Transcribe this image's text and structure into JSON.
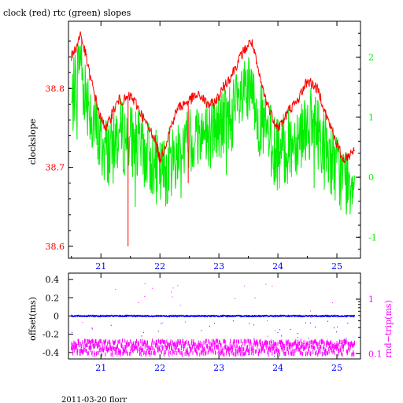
{
  "title": "clock (red) rtc (green) slopes",
  "footer": "2011-03-20 florr",
  "colors": {
    "clock": "#ff0000",
    "rtc": "#00ee00",
    "offset": "#0000ff",
    "rndtrip": "#ff00ff",
    "frame": "#000000"
  },
  "chart_data": [
    {
      "type": "line",
      "title": "clock (red) rtc (green) slopes",
      "x_ticks": [
        21,
        22,
        23,
        24,
        25
      ],
      "xlim": [
        20.45,
        25.4
      ],
      "ylabel": "clockslope",
      "ylim": [
        38.585,
        38.885
      ],
      "y_ticks": [
        38.6,
        38.7,
        38.8
      ],
      "y2lim": [
        -1.35,
        2.6
      ],
      "y2_ticks": [
        -1,
        0,
        1,
        2
      ],
      "series": [
        {
          "name": "clock",
          "axis": "left",
          "x": [
            20.5,
            20.6,
            20.65,
            20.7,
            20.75,
            20.8,
            20.9,
            21.0,
            21.1,
            21.2,
            21.3,
            21.4,
            21.5,
            21.6,
            21.7,
            21.8,
            21.9,
            22.0,
            22.1,
            22.2,
            22.3,
            22.4,
            22.5,
            22.6,
            22.7,
            22.8,
            22.9,
            23.0,
            23.1,
            23.2,
            23.3,
            23.4,
            23.5,
            23.55,
            23.6,
            23.7,
            23.8,
            23.9,
            24.0,
            24.1,
            24.2,
            24.3,
            24.4,
            24.5,
            24.6,
            24.7,
            24.8,
            24.9,
            25.0,
            25.1,
            25.2,
            25.3
          ],
          "y": [
            38.84,
            38.855,
            38.87,
            38.855,
            38.84,
            38.82,
            38.79,
            38.76,
            38.75,
            38.77,
            38.785,
            38.785,
            38.79,
            38.78,
            38.765,
            38.75,
            38.74,
            38.71,
            38.73,
            38.755,
            38.775,
            38.78,
            38.785,
            38.79,
            38.79,
            38.78,
            38.78,
            38.79,
            38.805,
            38.815,
            38.83,
            38.845,
            38.855,
            38.86,
            38.845,
            38.81,
            38.785,
            38.765,
            38.75,
            38.76,
            38.775,
            38.78,
            38.795,
            38.81,
            38.805,
            38.795,
            38.77,
            38.75,
            38.73,
            38.71,
            38.715,
            38.725
          ]
        },
        {
          "name": "rtc",
          "axis": "right",
          "x": [
            20.5,
            20.6,
            20.65,
            20.7,
            20.8,
            20.9,
            21.0,
            21.1,
            21.2,
            21.3,
            21.4,
            21.5,
            21.6,
            21.7,
            21.8,
            21.9,
            22.0,
            22.1,
            22.2,
            22.3,
            22.4,
            22.5,
            22.6,
            22.7,
            22.8,
            22.9,
            23.0,
            23.1,
            23.2,
            23.3,
            23.4,
            23.5,
            23.6,
            23.7,
            23.8,
            23.9,
            24.0,
            24.1,
            24.2,
            24.3,
            24.4,
            24.5,
            24.6,
            24.7,
            24.8,
            24.9,
            25.0,
            25.1,
            25.2,
            25.3
          ],
          "y": [
            1.2,
            1.8,
            2.2,
            1.6,
            1.3,
            0.9,
            0.6,
            0.5,
            0.6,
            0.8,
            0.7,
            0.7,
            0.6,
            0.5,
            0.4,
            0.3,
            0.1,
            0.2,
            0.35,
            0.5,
            0.6,
            0.65,
            0.75,
            0.8,
            0.8,
            0.85,
            0.9,
            1.0,
            1.1,
            1.2,
            1.35,
            1.45,
            1.3,
            1.0,
            0.8,
            0.6,
            0.45,
            0.5,
            0.6,
            0.7,
            0.85,
            0.95,
            0.9,
            0.8,
            0.6,
            0.4,
            0.2,
            0.05,
            0.0,
            0.1
          ]
        }
      ]
    },
    {
      "type": "scatter",
      "x_ticks": [
        21,
        22,
        23,
        24,
        25
      ],
      "xlim": [
        20.45,
        25.4
      ],
      "ylabel": "offset(ms)",
      "ylim": [
        -0.47,
        0.47
      ],
      "y_ticks": [
        -0.4,
        -0.2,
        0,
        0.2,
        0.4
      ],
      "y2label": "rnd−trip(ms)",
      "y2_scale": "log",
      "y2lim": [
        0.08,
        3.0
      ],
      "y2_ticks": [
        0.1,
        1
      ],
      "series": [
        {
          "name": "offset",
          "axis": "left",
          "x_range": [
            20.5,
            25.3
          ],
          "value": 0.0,
          "spread": 0.015
        },
        {
          "name": "rnd-trip",
          "axis": "right",
          "x_range": [
            20.5,
            25.3
          ],
          "value": 0.13,
          "spread": 0.02
        }
      ]
    }
  ]
}
